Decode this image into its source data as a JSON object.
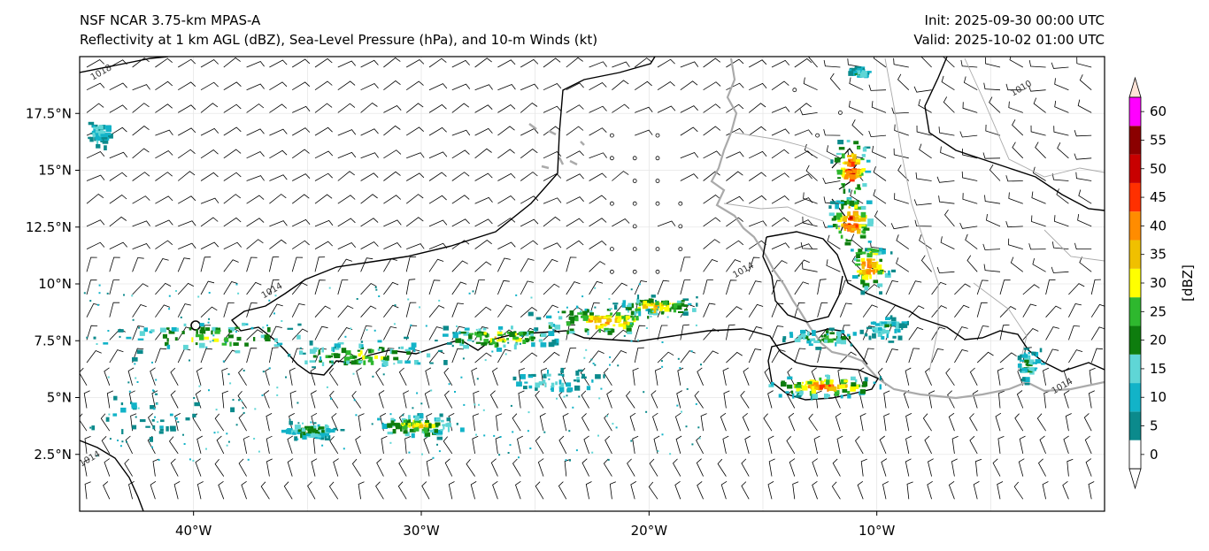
{
  "header": {
    "model": "NSF NCAR 3.75-km MPAS-A",
    "fields": "Reflectivity at 1 km AGL (dBZ), Sea-Level Pressure (hPa), and 10-m Winds (kt)",
    "init": "Init: 2025-09-30 00:00 UTC",
    "valid": "Valid: 2025-10-02 01:00 UTC"
  },
  "axes": {
    "lon_range": [
      -45,
      0
    ],
    "lat_range": [
      0,
      20
    ],
    "x_ticks": [
      {
        "lon": -40,
        "label": "40°W"
      },
      {
        "lon": -30,
        "label": "30°W"
      },
      {
        "lon": -20,
        "label": "20°W"
      },
      {
        "lon": -10,
        "label": "10°W"
      }
    ],
    "y_ticks": [
      {
        "lat": 2.5,
        "label": "2.5°N"
      },
      {
        "lat": 5,
        "label": "5°N"
      },
      {
        "lat": 7.5,
        "label": "7.5°N"
      },
      {
        "lat": 10,
        "label": "10°N"
      },
      {
        "lat": 12.5,
        "label": "12.5°N"
      },
      {
        "lat": 15,
        "label": "15°N"
      },
      {
        "lat": 17.5,
        "label": "17.5°N"
      }
    ]
  },
  "isobar_labels": [
    {
      "text": "1018",
      "lon": -44,
      "lat": 19.2
    },
    {
      "text": "1014",
      "lon": -36.5,
      "lat": 9.6
    },
    {
      "text": "1010",
      "lon": -3.6,
      "lat": 18.5
    },
    {
      "text": "1014",
      "lon": -1.8,
      "lat": 5.4
    },
    {
      "text": "1014",
      "lon": -44.5,
      "lat": 2.2
    },
    {
      "text": "1014",
      "lon": -15.8,
      "lat": 10.5
    }
  ],
  "colorbar": {
    "unit_label": "[dBZ]",
    "levels": [
      "0",
      "5",
      "10",
      "15",
      "20",
      "25",
      "30",
      "35",
      "40",
      "45",
      "50",
      "55",
      "60"
    ],
    "colors": [
      "#ffffff",
      "#0b8a8c",
      "#12b3c8",
      "#5fd6d6",
      "#0e7d0e",
      "#2eb82e",
      "#ffff00",
      "#f0c000",
      "#ff8c00",
      "#ff3000",
      "#c80000",
      "#8b0000",
      "#ff00ff",
      "#ffe4d8"
    ]
  },
  "colors": {
    "coastline": "#aaaaaa",
    "isobar": "#000000",
    "barb": "#000000"
  }
}
